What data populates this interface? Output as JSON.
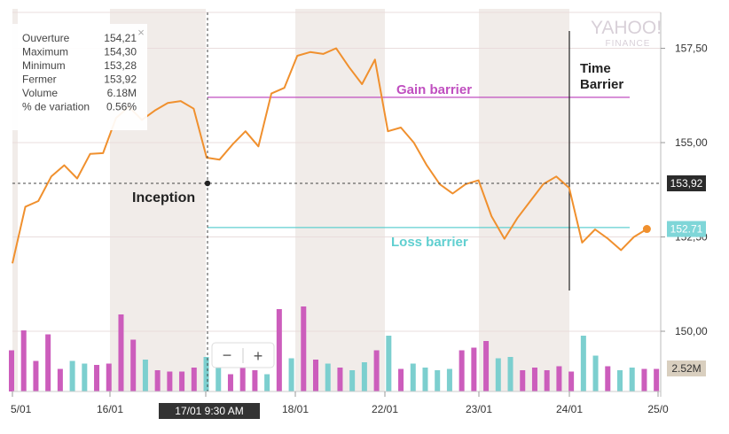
{
  "brand": {
    "line1": "YAHOO!",
    "line2": "FINANCE"
  },
  "tooltip": {
    "rows": [
      {
        "label": "Ouverture",
        "value": "154,21"
      },
      {
        "label": "Maximum",
        "value": "154,30"
      },
      {
        "label": "Minimum",
        "value": "153,28"
      },
      {
        "label": "Fermer",
        "value": "153,92"
      },
      {
        "label": "Volume",
        "value": "6.18M"
      },
      {
        "label": "% de variation",
        "value": "0.56%"
      }
    ],
    "close_glyph": "×"
  },
  "zoom": {
    "minus": "−",
    "plus": "+"
  },
  "crosshair_date_label": "17/01 9:30 AM",
  "colors": {
    "price_line": "#f0902e",
    "gain_barrier": "#c04fc0",
    "loss_barrier": "#60cfd0",
    "vol_up": "#7ccfcf",
    "vol_down": "#cc5dbc",
    "band": "#f1ece9"
  },
  "chart_data": {
    "type": "line",
    "y_axis": {
      "ticks": [
        157.5,
        155.0,
        152.5,
        150.0
      ],
      "tick_labels": [
        "157,50",
        "155,00",
        "152,50",
        "150,00"
      ]
    },
    "x_axis": {
      "tick_labels": [
        "5/01",
        "16/01",
        "17/01",
        "18/01",
        "22/01",
        "23/01",
        "24/01",
        "25/0"
      ]
    },
    "price": [
      151.8,
      153.3,
      153.45,
      154.1,
      154.4,
      154.05,
      154.7,
      154.72,
      155.65,
      155.95,
      155.6,
      155.85,
      156.05,
      156.1,
      155.9,
      154.6,
      154.55,
      154.95,
      155.3,
      154.9,
      156.3,
      156.45,
      157.3,
      157.4,
      157.35,
      157.5,
      157.0,
      156.55,
      157.2,
      155.3,
      155.4,
      155.0,
      154.4,
      153.9,
      153.65,
      153.9,
      154.0,
      153.05,
      152.45,
      153.0,
      153.45,
      153.9,
      154.1,
      153.8,
      152.35,
      152.7,
      152.45,
      152.15,
      152.5,
      152.71
    ],
    "volume": [
      3.1,
      4.6,
      2.3,
      4.3,
      1.7,
      2.3,
      2.1,
      2.0,
      2.1,
      5.8,
      3.9,
      2.4,
      1.6,
      1.5,
      1.5,
      1.8,
      2.6,
      2.0,
      1.3,
      1.9,
      1.6,
      1.3,
      6.2,
      2.5,
      6.4,
      2.4,
      2.1,
      1.8,
      1.6,
      2.2,
      3.1,
      4.2,
      1.7,
      2.1,
      1.8,
      1.6,
      1.7,
      3.1,
      3.3,
      3.8,
      2.5,
      2.6,
      1.6,
      1.8,
      1.6,
      1.9,
      1.5,
      4.2,
      2.7,
      1.9,
      1.6,
      1.8,
      1.7,
      1.7
    ],
    "volume_direction": [
      "d",
      "d",
      "d",
      "d",
      "d",
      "u",
      "u",
      "d",
      "d",
      "d",
      "d",
      "u",
      "d",
      "d",
      "d",
      "d",
      "u",
      "u",
      "d",
      "d",
      "d",
      "u",
      "d",
      "u",
      "d",
      "d",
      "u",
      "d",
      "u",
      "u",
      "d",
      "u",
      "d",
      "u",
      "u",
      "u",
      "u",
      "d",
      "d",
      "d",
      "u",
      "u",
      "d",
      "d",
      "d",
      "d",
      "d",
      "u",
      "u",
      "d",
      "u",
      "u",
      "d",
      "d"
    ],
    "last_price": {
      "value": 152.71,
      "label": "152.71"
    },
    "crosshair_price": {
      "value": 153.92,
      "label": "153,92"
    },
    "volume_label": "2.52M",
    "gain_barrier": {
      "value": 156.2,
      "label": "Gain barrier"
    },
    "loss_barrier": {
      "value": 152.75,
      "label": "Loss barrier"
    },
    "annotations": {
      "inception": "Inception",
      "time_barrier": [
        "Time",
        "Barrier"
      ]
    },
    "grid": true
  }
}
